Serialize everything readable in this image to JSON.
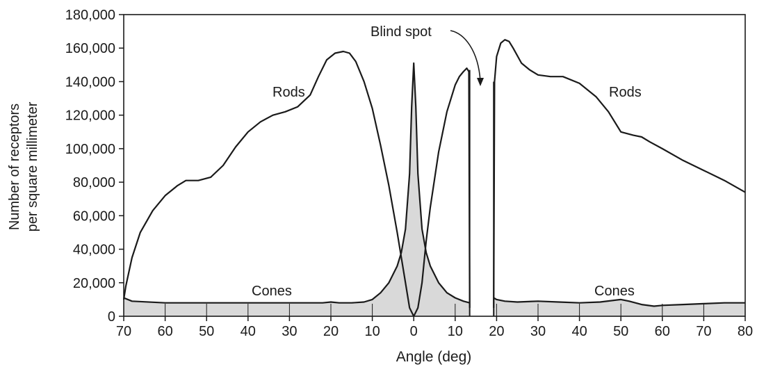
{
  "chart_data": {
    "type": "line",
    "title": "",
    "xlabel": "Angle (deg)",
    "ylabel_lines": [
      "Number of receptors",
      "per square millimeter"
    ],
    "ylim": [
      0,
      180000
    ],
    "y_ticks": [
      0,
      20000,
      40000,
      60000,
      80000,
      100000,
      120000,
      140000,
      160000,
      180000
    ],
    "y_tick_labels": [
      "0",
      "20,000",
      "40,000",
      "60,000",
      "80,000",
      "100,000",
      "120,000",
      "140,000",
      "160,000",
      "180,000"
    ],
    "x_ticks": [
      -70,
      -60,
      -50,
      -40,
      -30,
      -20,
      -10,
      0,
      10,
      20,
      30,
      40,
      50,
      60,
      70,
      80
    ],
    "x_tick_labels": [
      "70",
      "60",
      "50",
      "40",
      "30",
      "20",
      "10",
      "0",
      "10",
      "20",
      "30",
      "40",
      "50",
      "60",
      "70",
      "80"
    ],
    "xlim": [
      -70,
      80
    ],
    "annotations": {
      "blind_spot": "Blind spot",
      "rods_left": "Rods",
      "rods_right": "Rods",
      "cones_left": "Cones",
      "cones_right": "Cones"
    },
    "blind_spot_range": [
      13.5,
      19.3
    ],
    "series": [
      {
        "name": "Rods",
        "segments": [
          {
            "x": [
              -70,
              -69.5,
              -68,
              -66,
              -63,
              -60,
              -57,
              -55,
              -52,
              -49,
              -46,
              -43,
              -40,
              -37,
              -34,
              -31,
              -28,
              -25,
              -23,
              -21,
              -19,
              -17,
              -15.5,
              -14,
              -12,
              -10,
              -8,
              -6,
              -4,
              -2,
              -1,
              0
            ],
            "y": [
              10000,
              18000,
              35000,
              50000,
              63000,
              72000,
              78000,
              81000,
              81000,
              83000,
              90000,
              101000,
              110000,
              116000,
              120000,
              122000,
              125000,
              132000,
              143000,
              153000,
              157000,
              158000,
              157000,
              152000,
              140000,
              124000,
              102000,
              78000,
              50000,
              20000,
              5000,
              0
            ]
          },
          {
            "x": [
              0,
              1,
              2,
              3,
              4,
              6,
              8,
              10,
              11,
              12,
              12.8,
              13.3,
              13.5
            ],
            "y": [
              0,
              5000,
              20000,
              45000,
              65000,
              98000,
              122000,
              138000,
              143000,
              146000,
              148000,
              146000,
              5000
            ]
          },
          {
            "x": [
              19.3,
              19.5,
              20,
              21,
              22,
              23,
              24,
              26,
              28,
              30,
              33,
              36,
              40,
              44,
              47,
              50,
              53,
              55,
              57,
              60,
              65,
              70,
              75,
              80
            ],
            "y": [
              5000,
              140000,
              155000,
              163000,
              165000,
              164000,
              160000,
              151000,
              147000,
              144000,
              143000,
              143000,
              139000,
              131000,
              122000,
              110000,
              108000,
              107000,
              104000,
              100000,
              93000,
              87000,
              81000,
              74000
            ]
          }
        ]
      },
      {
        "name": "Cones",
        "segments": [
          {
            "x": [
              -70,
              -68,
              -60,
              -50,
              -40,
              -30,
              -25,
              -22,
              -20,
              -18,
              -15,
              -12,
              -10,
              -8,
              -6,
              -4,
              -3,
              -2,
              -1,
              -0.5,
              0,
              0.5,
              1,
              2,
              3,
              4,
              6,
              8,
              10,
              12,
              13.5
            ],
            "y": [
              11000,
              9000,
              8000,
              8000,
              8000,
              8000,
              8000,
              8000,
              8500,
              8000,
              8000,
              8500,
              10000,
              14000,
              20000,
              30000,
              38000,
              52000,
              85000,
              125000,
              151000,
              125000,
              85000,
              52000,
              38000,
              30000,
              20000,
              14000,
              11000,
              9000,
              8000
            ]
          },
          {
            "x": [
              19.3,
              20,
              22,
              25,
              30,
              35,
              40,
              45,
              50,
              52,
              55,
              58,
              60,
              65,
              70,
              75,
              80
            ],
            "y": [
              11000,
              10000,
              9000,
              8500,
              9000,
              8500,
              8000,
              8500,
              10000,
              9000,
              7000,
              6000,
              6500,
              7000,
              7500,
              8000,
              8000
            ]
          }
        ]
      }
    ],
    "colors": {
      "line": "#1a1a1a",
      "cone_fill": "#d9d9d9",
      "background": "#ffffff"
    }
  }
}
